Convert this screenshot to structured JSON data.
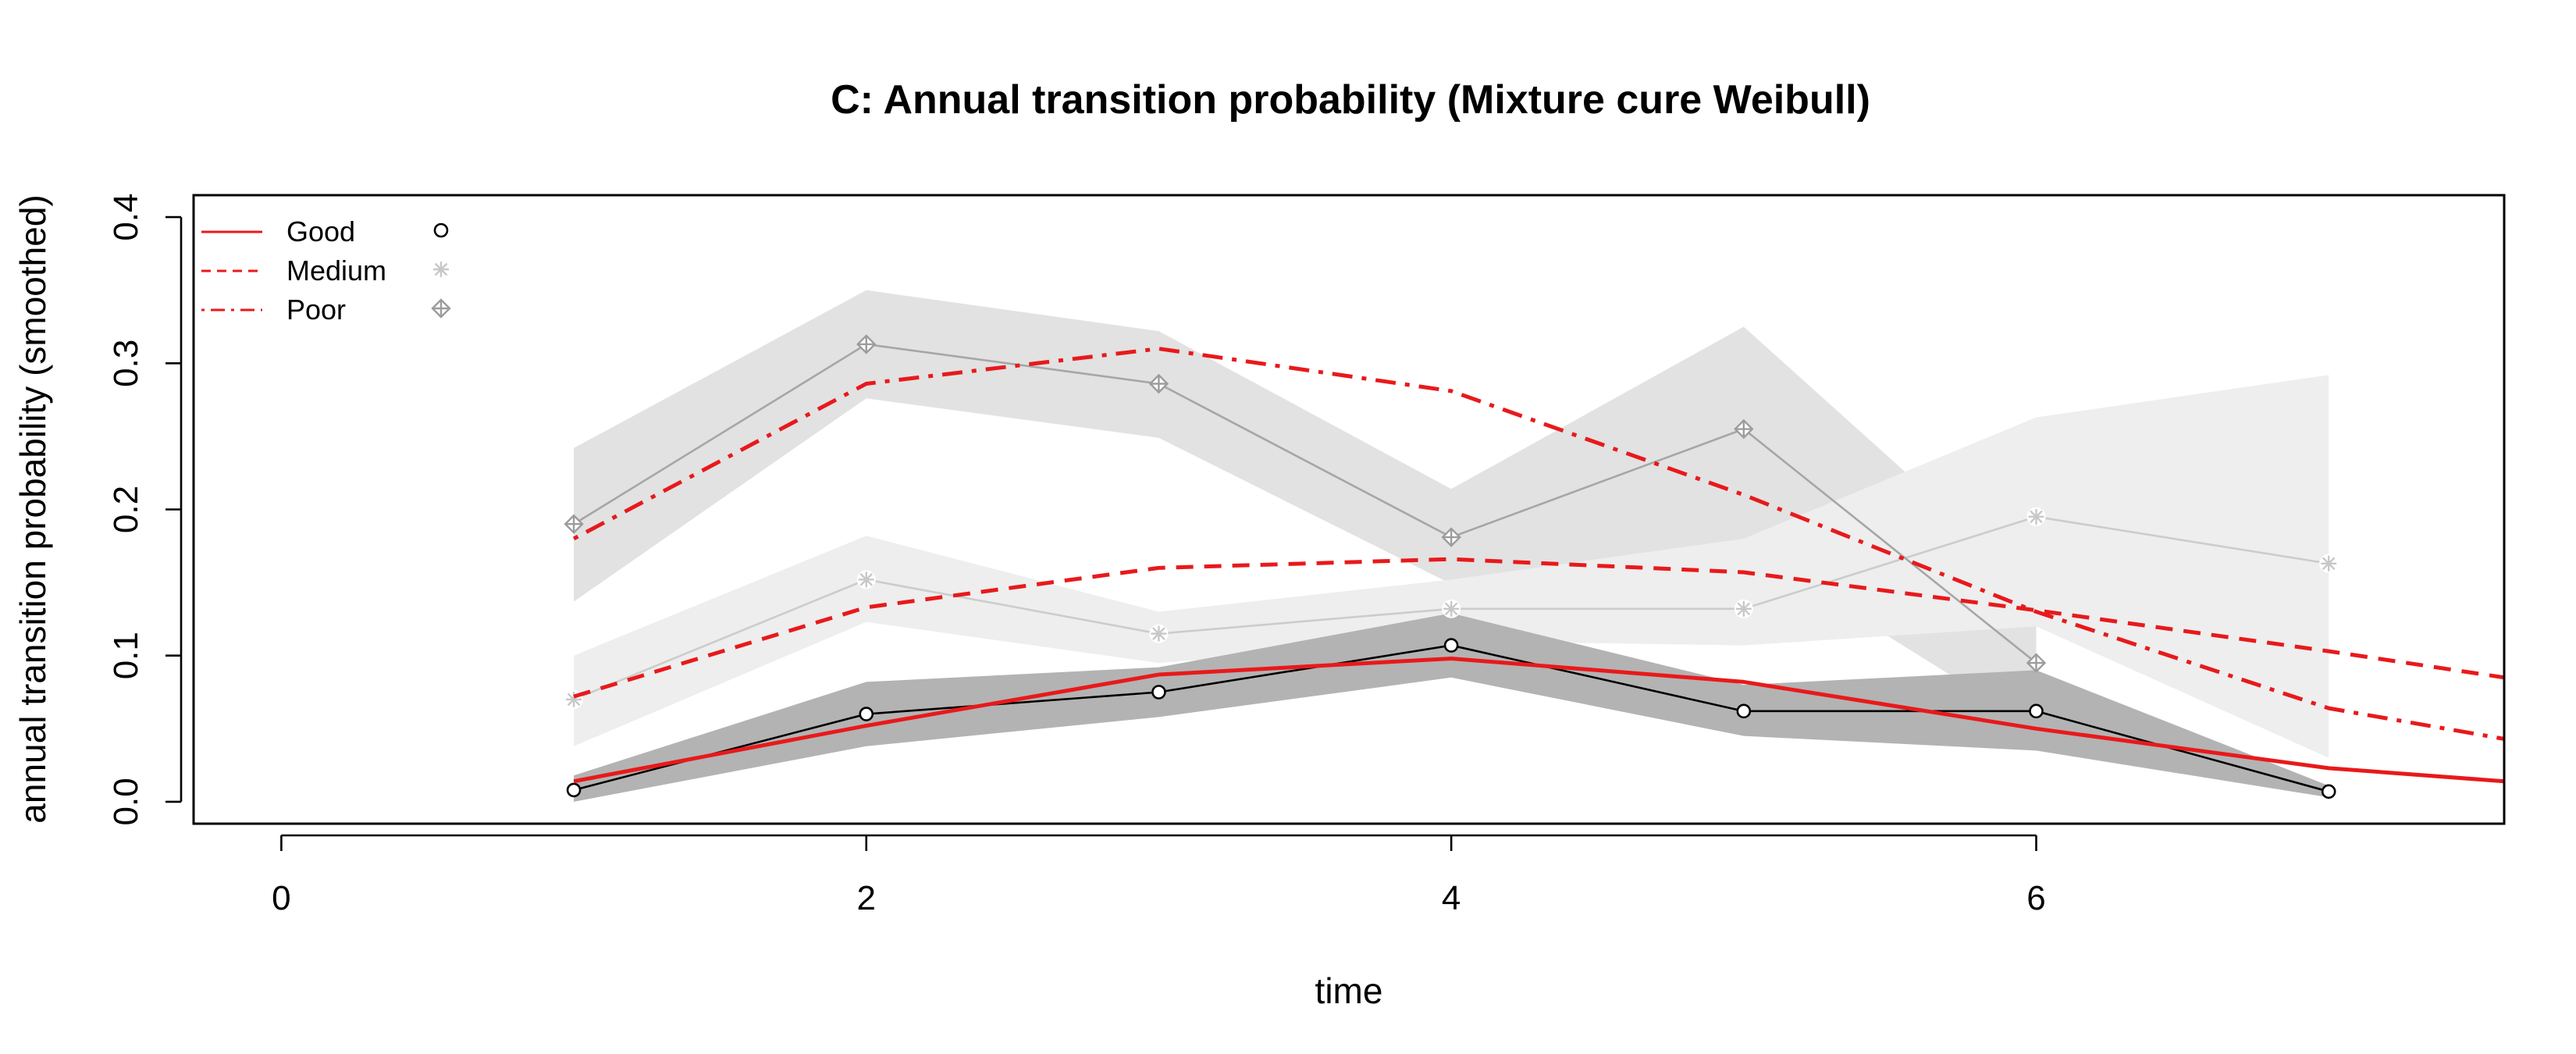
{
  "chart_data": {
    "type": "line",
    "title": "C: Annual transition probability (Mixture cure Weibull)",
    "xlabel": "time",
    "ylabel": "annual transition probability (smoothed)",
    "xlim": [
      -0.3,
      7.6
    ],
    "ylim": [
      -0.015,
      0.415
    ],
    "xticks": [
      "0",
      "2",
      "4",
      "6"
    ],
    "yticks": [
      "0.0",
      "0.1",
      "0.2",
      "0.3",
      "0.4"
    ],
    "grid": false,
    "legend_position": "top-left",
    "legend": [
      {
        "label": "Good",
        "line_style": "solid",
        "point_symbol": "circle",
        "color": "#e8191b",
        "point_color": "#000000"
      },
      {
        "label": "Medium",
        "line_style": "dashed",
        "point_symbol": "asterisk",
        "color": "#e8191b",
        "point_color": "#c8c8c8"
      },
      {
        "label": "Poor",
        "line_style": "dotdash",
        "point_symbol": "circle-plus",
        "color": "#e8191b",
        "point_color": "#9c9c9c"
      }
    ],
    "observed": [
      {
        "name": "Good",
        "x": [
          1,
          2,
          3,
          4,
          5,
          6,
          7
        ],
        "y": [
          0.008,
          0.06,
          0.075,
          0.107,
          0.062,
          0.062,
          0.007
        ],
        "lower": [
          0.0,
          0.038,
          0.058,
          0.085,
          0.045,
          0.035,
          0.003
        ],
        "upper": [
          0.018,
          0.082,
          0.092,
          0.129,
          0.08,
          0.09,
          0.011
        ],
        "band_color": "#b3b3b3",
        "line_color": "#000000"
      },
      {
        "name": "Medium",
        "x": [
          1,
          2,
          3,
          4,
          5,
          6,
          7
        ],
        "y": [
          0.07,
          0.152,
          0.115,
          0.132,
          0.132,
          0.195,
          0.163
        ],
        "lower": [
          0.038,
          0.123,
          0.095,
          0.11,
          0.107,
          0.12,
          0.03
        ],
        "upper": [
          0.1,
          0.182,
          0.13,
          0.152,
          0.18,
          0.263,
          0.292
        ],
        "band_color": "#eeeeee",
        "line_color": "#cccccc"
      },
      {
        "name": "Poor",
        "x": [
          1,
          2,
          3,
          4,
          5,
          6
        ],
        "y": [
          0.19,
          0.313,
          0.286,
          0.181,
          0.255,
          0.095
        ],
        "lower": [
          0.137,
          0.276,
          0.249,
          0.149,
          0.175,
          0.05
        ],
        "upper": [
          0.242,
          0.35,
          0.322,
          0.214,
          0.325,
          0.145
        ],
        "band_color": "#e2e2e2",
        "line_color": "#a6a6a6"
      }
    ],
    "fitted": [
      {
        "name": "Good",
        "x": [
          1,
          2,
          3,
          4,
          5,
          6,
          7,
          7.6
        ],
        "y": [
          0.014,
          0.052,
          0.087,
          0.098,
          0.082,
          0.05,
          0.023,
          0.014
        ],
        "color": "#e8191b",
        "line_style": "solid"
      },
      {
        "name": "Medium",
        "x": [
          1,
          2,
          3,
          4,
          5,
          6,
          7,
          7.6
        ],
        "y": [
          0.072,
          0.133,
          0.16,
          0.166,
          0.157,
          0.131,
          0.103,
          0.085
        ],
        "color": "#e8191b",
        "line_style": "dashed"
      },
      {
        "name": "Poor",
        "x": [
          1,
          2,
          3,
          4,
          5,
          6,
          7,
          7.6
        ],
        "y": [
          0.18,
          0.286,
          0.31,
          0.281,
          0.21,
          0.13,
          0.064,
          0.043
        ],
        "color": "#e8191b",
        "line_style": "dotdash"
      }
    ]
  }
}
